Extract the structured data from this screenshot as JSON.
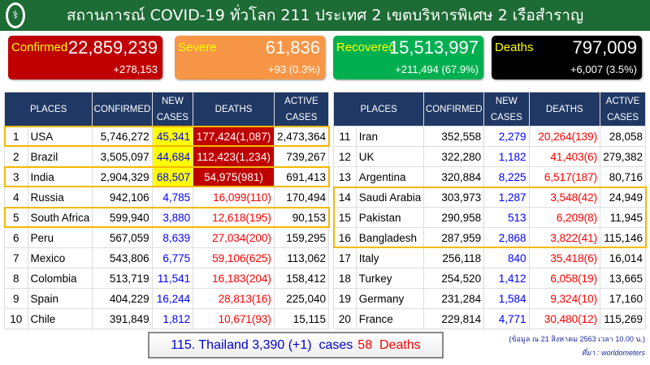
{
  "header": {
    "title": "สถานการณ์ COVID-19 ทั่วโลก 211 ประเทศ 2 เขตบริหารพิเศษ 2 เรือสำราญ",
    "logo_icon": "ministry-of-public-health-logo"
  },
  "cards": [
    {
      "label": "Confirmed",
      "value": "22,859,239",
      "change": "+278,153",
      "color": "#c00000"
    },
    {
      "label": "Severe",
      "value": "61,836",
      "change": "+93 (0.3%)",
      "color": "#f79646"
    },
    {
      "label": "Recovered",
      "value": "15,513,997",
      "change": "+211,494 (67.9%)",
      "color": "#00b050"
    },
    {
      "label": "Deaths",
      "value": "797,009",
      "change": "+6,007 (3.5%)",
      "color": "#000000"
    }
  ],
  "columns": {
    "places": "PLACES",
    "confirmed": "CONFIRMED",
    "new_cases": "NEW CASES",
    "deaths": "DEATHS",
    "active": "ACTIVE CASES"
  },
  "left_rows": [
    {
      "rank": "1",
      "place": "USA",
      "confirmed": "5,746,272",
      "new": "45,341",
      "deaths": "177,424(1,087)",
      "active": "2,473,364"
    },
    {
      "rank": "2",
      "place": "Brazil",
      "confirmed": "3,505,097",
      "new": "44,684",
      "deaths": "112,423(1,234)",
      "active": "739,267"
    },
    {
      "rank": "3",
      "place": "India",
      "confirmed": "2,904,329",
      "new": "68,507",
      "deaths": "54,975(981)",
      "active": "691,413"
    },
    {
      "rank": "4",
      "place": "Russia",
      "confirmed": "942,106",
      "new": "4,785",
      "deaths": "16,099(110)",
      "active": "170,494"
    },
    {
      "rank": "5",
      "place": "South Africa",
      "confirmed": "599,940",
      "new": "3,880",
      "deaths": "12,618(195)",
      "active": "90,153"
    },
    {
      "rank": "6",
      "place": "Peru",
      "confirmed": "567,059",
      "new": "8,639",
      "deaths": "27,034(200)",
      "active": "159,295"
    },
    {
      "rank": "7",
      "place": "Mexico",
      "confirmed": "543,806",
      "new": "6,775",
      "deaths": "59,106(625)",
      "active": "113,062"
    },
    {
      "rank": "8",
      "place": "Colombia",
      "confirmed": "513,719",
      "new": "11,541",
      "deaths": "16,183(204)",
      "active": "158,412"
    },
    {
      "rank": "9",
      "place": "Spain",
      "confirmed": "404,229",
      "new": "16,244",
      "deaths": "28,813(16)",
      "active": "225,040"
    },
    {
      "rank": "10",
      "place": "Chile",
      "confirmed": "391,849",
      "new": "1,812",
      "deaths": "10,671(93)",
      "active": "15,115"
    }
  ],
  "right_rows": [
    {
      "rank": "11",
      "place": "Iran",
      "confirmed": "352,558",
      "new": "2,279",
      "deaths": "20,264(139)",
      "active": "28,058"
    },
    {
      "rank": "12",
      "place": "UK",
      "confirmed": "322,280",
      "new": "1,182",
      "deaths": "41,403(6)",
      "active": "279,382"
    },
    {
      "rank": "13",
      "place": "Argentina",
      "confirmed": "320,884",
      "new": "8,225",
      "deaths": "6,517(187)",
      "active": "80,716"
    },
    {
      "rank": "14",
      "place": "Saudi Arabia",
      "confirmed": "303,973",
      "new": "1,287",
      "deaths": "3,548(42)",
      "active": "24,949"
    },
    {
      "rank": "15",
      "place": "Pakistan",
      "confirmed": "290,958",
      "new": "513",
      "deaths": "6,209(8)",
      "active": "11,945"
    },
    {
      "rank": "16",
      "place": "Bangladesh",
      "confirmed": "287,959",
      "new": "2,868",
      "deaths": "3,822(41)",
      "active": "115,146"
    },
    {
      "rank": "17",
      "place": "Italy",
      "confirmed": "256,118",
      "new": "840",
      "deaths": "35,418(6)",
      "active": "16,014"
    },
    {
      "rank": "18",
      "place": "Turkey",
      "confirmed": "254,520",
      "new": "1,412",
      "deaths": "6,058(19)",
      "active": "13,665"
    },
    {
      "rank": "19",
      "place": "Germany",
      "confirmed": "231,284",
      "new": "1,584",
      "deaths": "9,324(10)",
      "active": "17,160"
    },
    {
      "rank": "20",
      "place": "France",
      "confirmed": "229,814",
      "new": "4,771",
      "deaths": "30,480(12)",
      "active": "115,269"
    }
  ],
  "thailand": {
    "text": "115. Thailand 3,390 (+1)  cases",
    "deaths": "58  Deaths"
  },
  "source": {
    "date": "(ข้อมูล ณ 21 สิงหาคม 2563 เวลา 10.00 น.)",
    "label": "ที่มา : worldometers"
  }
}
